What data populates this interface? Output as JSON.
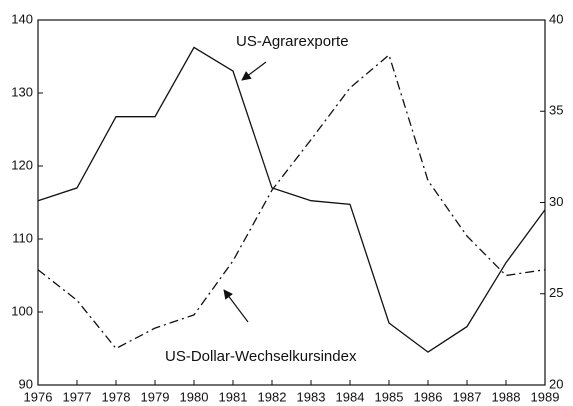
{
  "chart_data": {
    "type": "line",
    "x": [
      1976,
      1977,
      1978,
      1979,
      1980,
      1981,
      1982,
      1983,
      1984,
      1985,
      1986,
      1987,
      1988,
      1989
    ],
    "xlim": [
      1976,
      1989
    ],
    "series": [
      {
        "name": "US-Agrarexporte",
        "color": "#111111",
        "style": "solid",
        "axis": "y2",
        "values": [
          30.1,
          30.8,
          34.7,
          34.7,
          38.5,
          37.2,
          30.8,
          30.1,
          29.9,
          23.4,
          21.8,
          23.2,
          26.7,
          29.6
        ]
      },
      {
        "name": "US-Dollar-Wechselkursindex",
        "color": "#111111",
        "style": "dashdot",
        "values": [
          105.8,
          101.6,
          95,
          97.8,
          99.6,
          107,
          116.7,
          123.6,
          130.7,
          135.2,
          118,
          110.4,
          105,
          105.8
        ]
      }
    ],
    "ylim": [
      90,
      140
    ],
    "yticks": [
      90,
      100,
      110,
      120,
      130,
      140
    ],
    "y2lim": [
      20,
      40
    ],
    "y2ticks": [
      20,
      25,
      30,
      35,
      40
    ],
    "grid": false
  }
}
